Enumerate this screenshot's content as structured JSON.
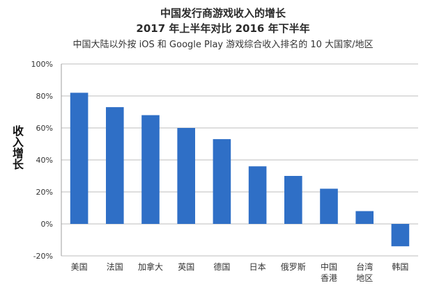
{
  "chart_data": {
    "type": "bar",
    "title": "中国发行商游戏收入的增长",
    "subtitle": "2017 年上半年对比 2016 年下半年",
    "caption": "中国大陆以外按 iOS 和 Google Play 游戏综合收入排名的 10 大国家/地区",
    "ylabel": "收入增长",
    "xlabel": "",
    "categories": [
      "美国",
      "法国",
      "加拿大",
      "英国",
      "德国",
      "日本",
      "俄罗斯",
      "中国香港",
      "台湾地区",
      "韩国"
    ],
    "category_lines": [
      [
        "美国"
      ],
      [
        "法国"
      ],
      [
        "加拿大"
      ],
      [
        "英国"
      ],
      [
        "德国"
      ],
      [
        "日本"
      ],
      [
        "俄罗斯"
      ],
      [
        "中国",
        "香港"
      ],
      [
        "台湾",
        "地区"
      ],
      [
        "韩国"
      ]
    ],
    "values": [
      82,
      73,
      68,
      60,
      53,
      36,
      30,
      22,
      8,
      -14
    ],
    "ylim": [
      -20,
      100
    ],
    "yticks": [
      -20,
      0,
      20,
      40,
      60,
      80,
      100
    ],
    "ytick_labels": [
      "-20%",
      "0%",
      "20%",
      "40%",
      "60%",
      "80%",
      "100%"
    ],
    "grid": true,
    "bar_color": "#2f6fc6",
    "grid_color": "#bdbdbd"
  }
}
